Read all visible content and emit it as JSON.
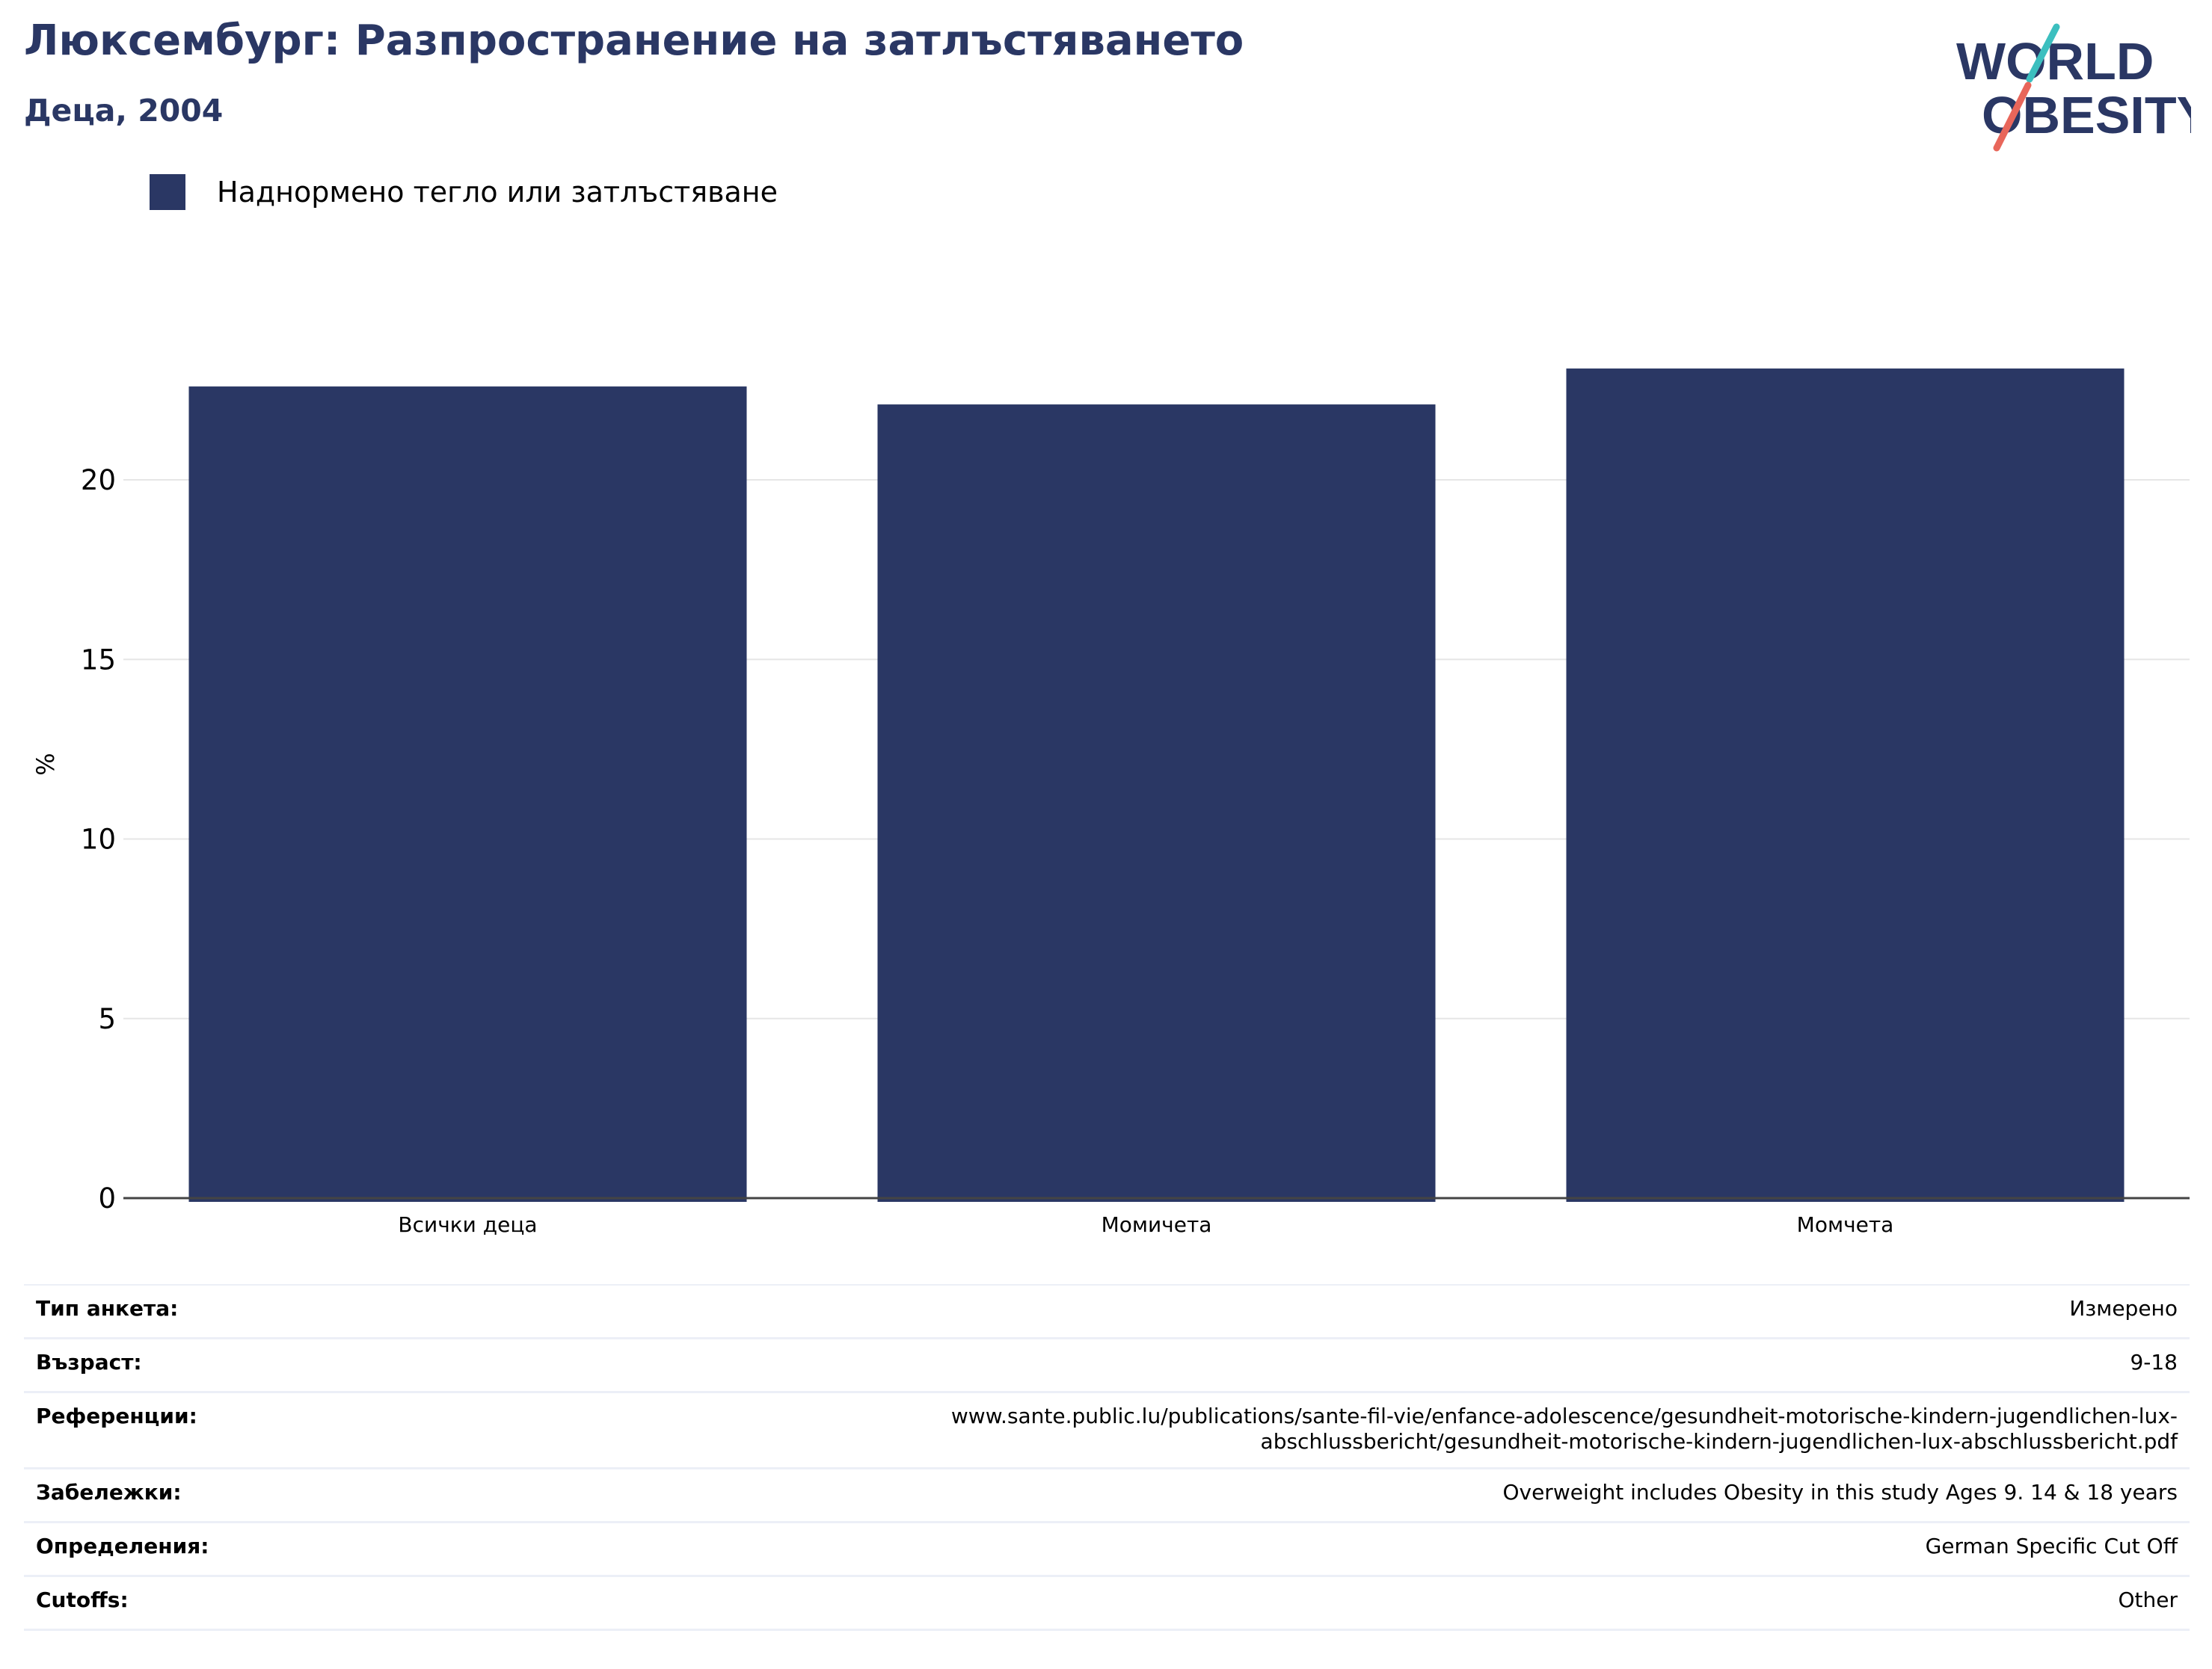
{
  "header": {
    "title": "Люксембург: Разпространение на затлъстяването",
    "subtitle": "Деца, 2004"
  },
  "logo": {
    "line1": "WORLD",
    "line2": "OBESITY"
  },
  "colors": {
    "bar": "#2a3764",
    "title": "#2a3764",
    "grid": "#e6e6e6",
    "logo_teal": "#3cbfbf",
    "logo_coral": "#e8665a"
  },
  "legend": {
    "label": "Наднормено тегло или затлъстяване"
  },
  "chart_data": {
    "type": "bar",
    "categories": [
      "Всички деца",
      "Момичета",
      "Момчета"
    ],
    "series": [
      {
        "name": "Наднормено тегло или затлъстяване",
        "values": [
          22.6,
          22.1,
          23.1
        ]
      }
    ],
    "ylabel": "%",
    "ylim": [
      0,
      25
    ],
    "yticks": [
      0,
      5,
      10,
      15,
      20
    ],
    "grid": true,
    "legend_position": "top-left"
  },
  "meta": {
    "rows": [
      {
        "label": "Тип анкета:",
        "value": "Измерено"
      },
      {
        "label": "Възраст:",
        "value": "9-18"
      },
      {
        "label": "Референции:",
        "value_lines": [
          "www.sante.public.lu/publications/sante-fil-vie/enfance-adolescence/gesundheit-motorische-kindern-jugendlichen-lux-",
          "abschlussbericht/gesundheit-motorische-kindern-jugendlichen-lux-abschlussbericht.pdf"
        ]
      },
      {
        "label": "Забележки:",
        "value": "Overweight includes Obesity in this study Ages 9. 14 & 18 years"
      },
      {
        "label": "Определения:",
        "value": "German Specific Cut Off"
      },
      {
        "label": "Cutoffs:",
        "value": "Other"
      }
    ]
  }
}
